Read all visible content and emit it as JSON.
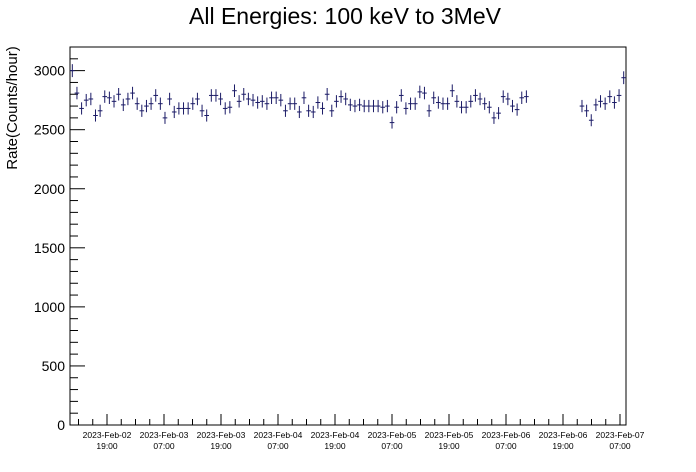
{
  "chart_data": {
    "type": "scatter",
    "title": "All Energies:  100 keV to 3MeV",
    "xlabel": "",
    "ylabel": "Rate(Counts/hour)",
    "ylim": [
      0,
      3200
    ],
    "yticks": [
      0,
      500,
      1000,
      1500,
      2000,
      2500,
      3000
    ],
    "xtick_labels": [
      [
        "2023-Feb-02",
        "19:00"
      ],
      [
        "2023-Feb-03",
        "07:00"
      ],
      [
        "2023-Feb-03",
        "19:00"
      ],
      [
        "2023-Feb-04",
        "07:00"
      ],
      [
        "2023-Feb-04",
        "19:00"
      ],
      [
        "2023-Feb-05",
        "07:00"
      ],
      [
        "2023-Feb-05",
        "19:00"
      ],
      [
        "2023-Feb-06",
        "07:00"
      ],
      [
        "2023-Feb-06",
        "19:00"
      ],
      [
        "2023-Feb-07",
        "07:00"
      ]
    ],
    "grid": false,
    "legend": "none",
    "color": "#1a1a66",
    "values": [
      3000,
      2810,
      2680,
      2750,
      2760,
      2620,
      2660,
      2780,
      2770,
      2740,
      2800,
      2710,
      2760,
      2810,
      2720,
      2660,
      2700,
      2720,
      2790,
      2720,
      2600,
      2760,
      2650,
      2680,
      2680,
      2680,
      2720,
      2760,
      2660,
      2620,
      2790,
      2790,
      2760,
      2680,
      2690,
      2830,
      2740,
      2800,
      2760,
      2750,
      2730,
      2740,
      2720,
      2770,
      2770,
      2750,
      2660,
      2720,
      2720,
      2650,
      2770,
      2660,
      2650,
      2730,
      2680,
      2800,
      2660,
      2740,
      2780,
      2760,
      2710,
      2700,
      2710,
      2700,
      2700,
      2700,
      2700,
      2690,
      2700,
      2560,
      2690,
      2790,
      2680,
      2720,
      2720,
      2820,
      2810,
      2660,
      2770,
      2730,
      2720,
      2720,
      2830,
      2740,
      2690,
      2690,
      2740,
      2790,
      2760,
      2720,
      2690,
      2600,
      2640,
      2780,
      2760,
      2700,
      2670,
      2770,
      2780,
      null,
      null,
      null,
      null,
      null,
      null,
      null,
      null,
      null,
      null,
      null,
      2700,
      2660,
      2580,
      2710,
      2740,
      2720,
      2780,
      2730,
      2790,
      2940
    ]
  }
}
